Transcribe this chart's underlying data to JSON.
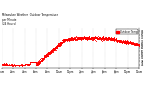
{
  "title": "Milwaukee Weather  Outdoor Temperature\nper Minute\n(24 Hours)",
  "line_color": "#ff0000",
  "bg_color": "#ffffff",
  "grid_color": "#888888",
  "ylim": [
    40,
    88
  ],
  "xlim": [
    0,
    1440
  ],
  "figsize": [
    1.6,
    0.87
  ],
  "dpi": 100,
  "legend_label": "Outdoor Temp",
  "legend_color": "#ff0000",
  "yticks": [
    44,
    48,
    52,
    56,
    60,
    64,
    68,
    72,
    76,
    80,
    84
  ],
  "time_labels": [
    "12am",
    "2am",
    "4am",
    "6am",
    "8am",
    "10am",
    "12pm",
    "2pm",
    "4pm",
    "6pm",
    "8pm",
    "10pm",
    "12am"
  ]
}
